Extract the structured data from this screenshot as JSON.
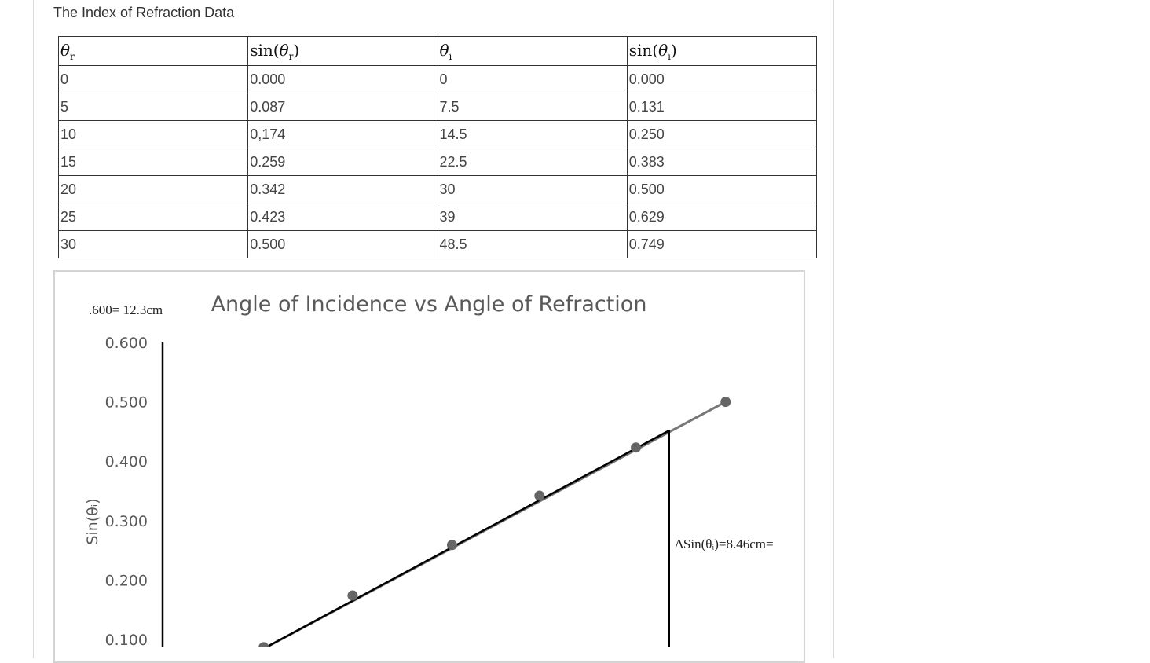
{
  "heading": "The Index of Refraction Data",
  "table": {
    "columns": [
      {
        "sym": "θ",
        "sub": "r",
        "fn": ""
      },
      {
        "sym": "θ",
        "sub": "r",
        "fn": "sin"
      },
      {
        "sym": "θ",
        "sub": "i",
        "fn": ""
      },
      {
        "sym": "θ",
        "sub": "i",
        "fn": "sin"
      }
    ],
    "rows": [
      [
        "0",
        "0.000",
        "0",
        "0.000"
      ],
      [
        "5",
        "0.087",
        "7.5",
        "0.131"
      ],
      [
        "10",
        "0,174",
        "14.5",
        "0.250"
      ],
      [
        "15",
        "0.259",
        "22.5",
        "0.383"
      ],
      [
        "20",
        "0.342",
        "30",
        "0.500"
      ],
      [
        "25",
        "0.423",
        "39",
        "0.629"
      ],
      [
        "30",
        "0.500",
        "48.5",
        "0.749"
      ]
    ]
  },
  "chart_data": {
    "type": "scatter",
    "title": "Angle of Incidence vs Angle of Refraction",
    "ylabel": "Sin(θᵢ)",
    "ylim": [
      0,
      0.6
    ],
    "yticks": [
      "0.100",
      "0.200",
      "0.300",
      "0.400",
      "0.500",
      "0.600"
    ],
    "ytick_values": [
      0.1,
      0.2,
      0.3,
      0.4,
      0.5,
      0.6
    ],
    "x": [
      0.131,
      0.25,
      0.383,
      0.5,
      0.629,
      0.749
    ],
    "y": [
      0.087,
      0.174,
      0.259,
      0.342,
      0.423,
      0.5
    ],
    "trendline": true,
    "annotations": {
      "top_note": ".600= 12.3cm",
      "delta_note": "ΔSin(θᵢ)=8.46cm="
    },
    "colors": {
      "points": "#666666",
      "line": "#000000",
      "title": "#595959",
      "ticks": "#595959"
    }
  }
}
